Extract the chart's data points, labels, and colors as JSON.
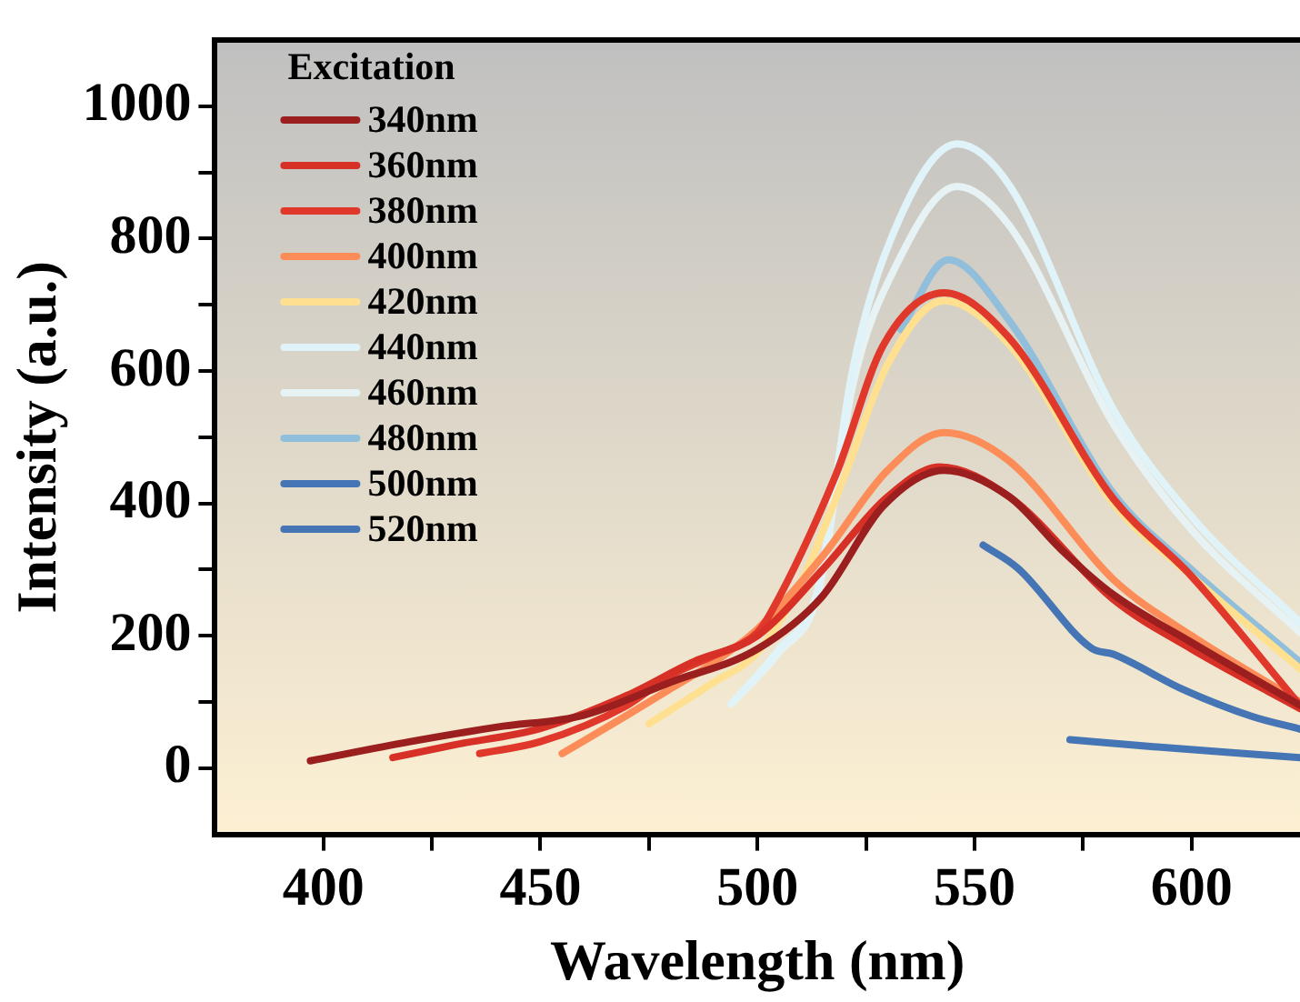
{
  "chart_data": {
    "type": "line",
    "xlabel": "Wavelength (nm)",
    "ylabel": "Intensity (a.u.)",
    "legend_title": "Excitation",
    "legend": "top left",
    "grid": false,
    "marker": "none",
    "line_style": "solid",
    "xlim": [
      375,
      625
    ],
    "ylim": [
      -100,
      1100
    ],
    "xticks": [
      400,
      {
        "value": 425,
        "label": null
      },
      450,
      {
        "value": 475,
        "label": null
      },
      500,
      {
        "value": 525,
        "label": null
      },
      550,
      {
        "value": 575,
        "label": null
      },
      600
    ],
    "yticks": [
      0,
      {
        "value": 100,
        "label": null
      },
      200,
      {
        "value": 300,
        "label": null
      },
      400,
      {
        "value": 500,
        "label": null
      },
      600,
      {
        "value": 700,
        "label": null
      },
      800,
      {
        "value": 900,
        "label": null
      },
      1000
    ],
    "series": [
      {
        "name": "340nm",
        "color": "#9b1f1f",
        "x": [
          397,
          420,
          440,
          460,
          480,
          500,
          515,
          529,
          543,
          558,
          570,
          582,
          600,
          625
        ],
        "values": [
          11,
          40,
          62,
          80,
          130,
          180,
          260,
          396,
          450,
          410,
          330,
          262,
          190,
          95
        ]
      },
      {
        "name": "360nm",
        "color": "#d73027",
        "x": [
          416,
          430,
          450,
          470,
          485,
          500,
          515,
          530,
          542,
          558,
          582,
          600,
          625
        ],
        "values": [
          16,
          35,
          60,
          110,
          160,
          200,
          300,
          410,
          455,
          410,
          255,
          180,
          90
        ]
      },
      {
        "name": "380nm",
        "color": "#e0382a",
        "x": [
          436,
          450,
          470,
          480,
          490,
          500,
          503,
          518,
          529,
          543,
          558,
          582,
          600,
          625
        ],
        "values": [
          22,
          40,
          95,
          140,
          170,
          205,
          234,
          442,
          639,
          718,
          650,
          407,
          290,
          95
        ]
      },
      {
        "name": "400nm",
        "color": "#fc8d59",
        "x": [
          455,
          470,
          480,
          490,
          500,
          515,
          530,
          543,
          558,
          582,
          600,
          625
        ],
        "values": [
          22,
          80,
          120,
          160,
          210,
          320,
          450,
          507,
          464,
          285,
          200,
          100
        ]
      },
      {
        "name": "420nm",
        "color": "#fee090",
        "x": [
          475,
          490,
          500,
          510,
          520,
          530,
          543,
          558,
          582,
          600,
          625
        ],
        "values": [
          67,
          130,
          175,
          280,
          440,
          610,
          706,
          640,
          400,
          290,
          150
        ]
      },
      {
        "name": "440nm",
        "color": "#e0f3f8",
        "x": [
          494,
          505,
          514,
          522,
          532,
          546,
          558,
          582,
          600,
          625
        ],
        "values": [
          97,
          180,
          272,
          604,
          819,
          943,
          881,
          542,
          380,
          220
        ]
      },
      {
        "name": "460nm",
        "color": "#e6f2f4",
        "x": [
          494,
          505,
          514,
          522,
          532,
          546,
          558,
          582,
          600,
          625
        ],
        "values": [
          97,
          175,
          265,
          580,
          760,
          879,
          820,
          520,
          360,
          205
        ]
      },
      {
        "name": "480nm",
        "color": "#91bfdb",
        "x": [
          533,
          544,
          558,
          582,
          600,
          625
        ],
        "values": [
          663,
          768,
          676,
          415,
          300,
          160
        ]
      },
      {
        "name": "500nm",
        "color": "#4575b4",
        "x": [
          552,
          560,
          577,
          582,
          598,
          614,
          625
        ],
        "values": [
          337,
          302,
          181,
          172,
          119,
          78,
          59
        ]
      },
      {
        "name": "520nm",
        "color": "#4575b4",
        "x": [
          572,
          590,
          610,
          625
        ],
        "values": [
          43,
          33,
          23,
          16
        ]
      }
    ]
  }
}
